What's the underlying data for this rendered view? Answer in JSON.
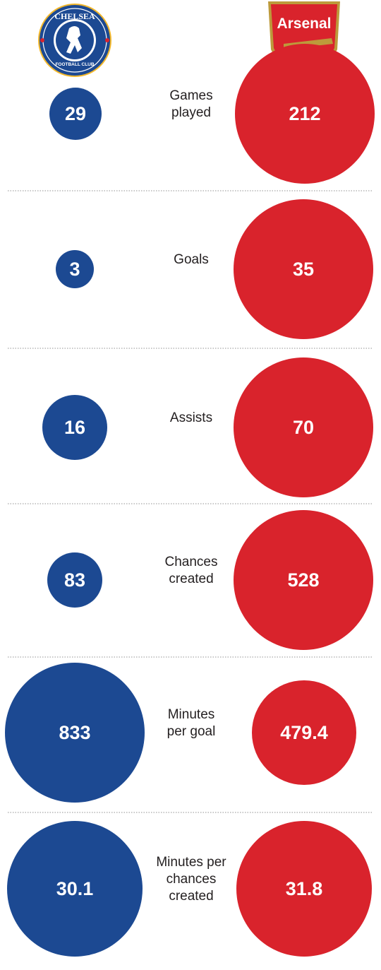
{
  "colors": {
    "chelsea": "#1c4992",
    "arsenal": "#d9232c",
    "divider": "#a8a8a8",
    "text": "#231f20"
  },
  "logos": {
    "chelsea": {
      "icon": "chelsea-crest",
      "top_text": "CHELSEA",
      "bottom_text": "FOOTBALL CLUB"
    },
    "arsenal": {
      "icon": "arsenal-crest",
      "text": "Arsenal"
    }
  },
  "chart_data": {
    "type": "proportional-circles",
    "series": [
      {
        "name": "Chelsea",
        "color": "#1c4992"
      },
      {
        "name": "Arsenal",
        "color": "#d9232c"
      }
    ],
    "rows": [
      {
        "label": [
          "Games",
          "played"
        ],
        "chelsea": "29",
        "arsenal": "212"
      },
      {
        "label": [
          "Goals"
        ],
        "chelsea": "3",
        "arsenal": "35"
      },
      {
        "label": [
          "Assists"
        ],
        "chelsea": "16",
        "arsenal": "70"
      },
      {
        "label": [
          "Chances",
          "created"
        ],
        "chelsea": "83",
        "arsenal": "528"
      },
      {
        "label": [
          "Minutes",
          "per goal"
        ],
        "chelsea": "833",
        "arsenal": "479.4"
      },
      {
        "label": [
          "Minutes per",
          "chances",
          "created"
        ],
        "chelsea": "30.1",
        "arsenal": "31.8"
      }
    ]
  }
}
